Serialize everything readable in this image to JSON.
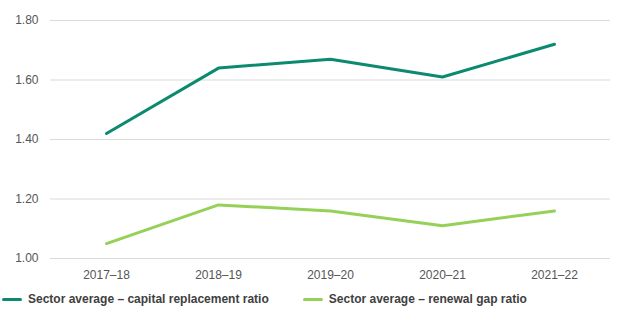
{
  "chart_data": {
    "type": "line",
    "categories": [
      "2017–18",
      "2018–19",
      "2019–20",
      "2020–21",
      "2021–22"
    ],
    "series": [
      {
        "name": "Sector average – capital replacement ratio",
        "color": "#0b8a6f",
        "values": [
          1.42,
          1.64,
          1.67,
          1.61,
          1.72
        ]
      },
      {
        "name": "Sector average – renewal gap ratio",
        "color": "#95d058",
        "values": [
          1.05,
          1.18,
          1.16,
          1.11,
          1.16
        ]
      }
    ],
    "ylim": [
      1.0,
      1.8
    ],
    "yticks": [
      {
        "value": 1.0,
        "label": "1.00"
      },
      {
        "value": 1.2,
        "label": "1.20"
      },
      {
        "value": 1.4,
        "label": "1.40"
      },
      {
        "value": 1.6,
        "label": "1.60"
      },
      {
        "value": 1.8,
        "label": "1.80"
      }
    ],
    "grid": true,
    "legend": "bottom"
  }
}
